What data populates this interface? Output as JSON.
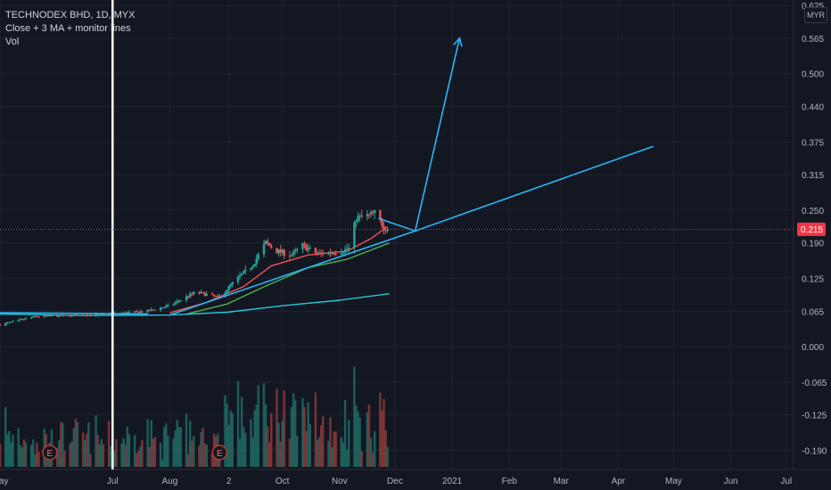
{
  "legend": {
    "symbol": "TECHNODEX BHD, 1D, MYX",
    "indicator": "Close + 3 MA + monitor lines",
    "volume": "Vol"
  },
  "currency_button": "MYR",
  "colors": {
    "background": "#131722",
    "grid": "#1f2330",
    "up": "#26a69a",
    "down": "#ef5350",
    "ma_fast": "#ef5350",
    "ma_mid": "#4caf50",
    "ma_slow": "#26c6da",
    "trend_line": "#29b6f6",
    "axis_text": "#b2b5be",
    "price_label": "#f23645"
  },
  "chart_data": {
    "type": "candlestick",
    "symbol": "TECHNODEX BHD",
    "interval": "1D",
    "exchange": "MYX",
    "y_axis": {
      "side": "right",
      "ticks": [
        0.625,
        0.565,
        0.5,
        0.44,
        0.375,
        0.315,
        0.25,
        0.19,
        0.125,
        0.065,
        0.0,
        -0.065,
        -0.125,
        -0.19
      ],
      "tick_labels": [
        "0.625",
        "0.565",
        "0.500",
        "0.440",
        "0.375",
        "0.315",
        "0.250",
        "0.190",
        "0.125",
        "0.065",
        "0.000",
        "-0.065",
        "-0.125",
        "-0.190"
      ],
      "range": [
        -0.225,
        0.635
      ]
    },
    "x_axis": {
      "tick_labels": [
        "May",
        "Jul",
        "Aug",
        "2",
        "Oct",
        "Nov",
        "Dec",
        "2021",
        "Feb",
        "Mar",
        "Apr",
        "May",
        "Jun",
        "Jul"
      ],
      "tick_dates": [
        "2020-05-01",
        "2020-07-01",
        "2020-08-01",
        "2020-09-02",
        "2020-10-01",
        "2020-11-01",
        "2020-12-01",
        "2021-01-01",
        "2021-02-01",
        "2021-03-01",
        "2021-04-01",
        "2021-05-01",
        "2021-06-01",
        "2021-07-01"
      ],
      "range": [
        "2020-05-01",
        "2021-07-05"
      ]
    },
    "last_price": 0.215,
    "last_price_label": "0.215",
    "vertical_marker_date": "2020-07-01",
    "earnings_markers": [
      {
        "date": "2020-05-28",
        "label": "E"
      },
      {
        "date": "2020-08-28",
        "label": "E"
      }
    ],
    "anchors": [
      {
        "date": "2020-05-01",
        "close": 0.04,
        "high": 0.048
      },
      {
        "date": "2020-05-20",
        "close": 0.055,
        "high": 0.075
      },
      {
        "date": "2020-06-15",
        "close": 0.058,
        "high": 0.068
      },
      {
        "date": "2020-07-01",
        "close": 0.06,
        "high": 0.068
      },
      {
        "date": "2020-07-20",
        "close": 0.065,
        "high": 0.078
      },
      {
        "date": "2020-08-01",
        "close": 0.075,
        "high": 0.09
      },
      {
        "date": "2020-08-15",
        "close": 0.1,
        "high": 0.125
      },
      {
        "date": "2020-08-28",
        "close": 0.09,
        "high": 0.11
      },
      {
        "date": "2020-09-05",
        "close": 0.12,
        "high": 0.14
      },
      {
        "date": "2020-09-15",
        "close": 0.15,
        "high": 0.17
      },
      {
        "date": "2020-09-22",
        "close": 0.19,
        "high": 0.2
      },
      {
        "date": "2020-09-28",
        "close": 0.175,
        "high": 0.19
      },
      {
        "date": "2020-10-06",
        "close": 0.168,
        "high": 0.175
      },
      {
        "date": "2020-10-12",
        "close": 0.185,
        "high": 0.195
      },
      {
        "date": "2020-10-20",
        "close": 0.17,
        "high": 0.178
      },
      {
        "date": "2020-11-02",
        "close": 0.175,
        "high": 0.182
      },
      {
        "date": "2020-11-06",
        "close": 0.18,
        "high": 0.19
      },
      {
        "date": "2020-11-10",
        "close": 0.235,
        "high": 0.25
      },
      {
        "date": "2020-11-17",
        "close": 0.24,
        "high": 0.25
      },
      {
        "date": "2020-11-20",
        "close": 0.245,
        "high": 0.25
      },
      {
        "date": "2020-11-25",
        "close": 0.22,
        "high": 0.235
      },
      {
        "date": "2020-11-27",
        "close": 0.215,
        "high": 0.225
      }
    ],
    "moving_averages": [
      {
        "color": "#ef5350",
        "points": [
          [
            "2020-08-01",
            0.062
          ],
          [
            "2020-08-20",
            0.08
          ],
          [
            "2020-09-10",
            0.11
          ],
          [
            "2020-09-25",
            0.148
          ],
          [
            "2020-10-15",
            0.168
          ],
          [
            "2020-11-05",
            0.175
          ],
          [
            "2020-11-18",
            0.198
          ],
          [
            "2020-11-27",
            0.22
          ]
        ]
      },
      {
        "color": "#4caf50",
        "points": [
          [
            "2020-08-10",
            0.06
          ],
          [
            "2020-09-01",
            0.078
          ],
          [
            "2020-09-20",
            0.108
          ],
          [
            "2020-10-15",
            0.145
          ],
          [
            "2020-11-05",
            0.16
          ],
          [
            "2020-11-28",
            0.19
          ]
        ]
      },
      {
        "color": "#26c6da",
        "points": [
          [
            "2020-05-01",
            0.06
          ],
          [
            "2020-06-15",
            0.057
          ],
          [
            "2020-08-01",
            0.058
          ],
          [
            "2020-09-01",
            0.063
          ],
          [
            "2020-10-01",
            0.075
          ],
          [
            "2020-11-01",
            0.085
          ],
          [
            "2020-11-28",
            0.097
          ]
        ]
      }
    ],
    "drawn_lines": [
      {
        "color": "#29b6f6",
        "points": [
          [
            "2020-05-01",
            0.062
          ],
          [
            "2020-07-20",
            0.06
          ]
        ]
      },
      {
        "color": "#29b6f6",
        "points": [
          [
            "2020-08-01",
            0.058
          ],
          [
            "2020-12-12",
            0.212
          ],
          [
            "2021-04-20",
            0.367
          ]
        ]
      },
      {
        "color": "#29b6f6",
        "points": [
          [
            "2020-11-22",
            0.235
          ],
          [
            "2020-12-12",
            0.212
          ],
          [
            "2021-01-05",
            0.565
          ]
        ],
        "arrow": true
      }
    ],
    "volume": {
      "visible": true,
      "max_height_fraction": 0.28
    }
  }
}
